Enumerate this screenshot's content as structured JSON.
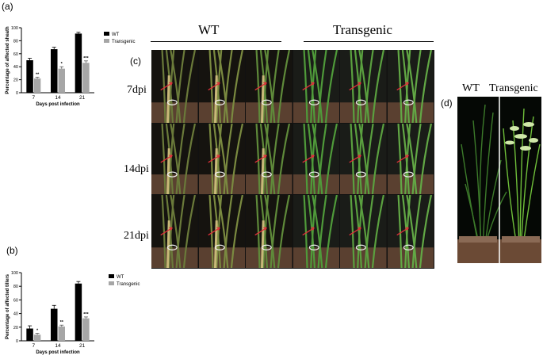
{
  "panels": {
    "a": "(a)",
    "b": "(b)",
    "c": "(c)",
    "d": "(d)"
  },
  "chart_data": [
    {
      "type": "bar",
      "panel": "(a)",
      "ylabel": "Percentage of affected sheath",
      "xlabel": "Days post infection",
      "categories": [
        "7",
        "14",
        "21"
      ],
      "ylim": [
        0,
        100
      ],
      "yticks": [
        "0",
        "20",
        "40",
        "60",
        "80",
        "100"
      ],
      "series": [
        {
          "name": "WT",
          "values": [
            50,
            67,
            91
          ],
          "errors": [
            3,
            3,
            2
          ],
          "color": "#000000"
        },
        {
          "name": "Transgenic",
          "values": [
            22,
            37,
            46
          ],
          "errors": [
            2,
            3,
            3
          ],
          "color": "#a6a6a6"
        }
      ],
      "significance": [
        "**",
        "*",
        "***"
      ],
      "legend": "top-right"
    },
    {
      "type": "bar",
      "panel": "(b)",
      "ylabel": "Percentage of affected tillers",
      "xlabel": "Days post infection",
      "categories": [
        "7",
        "14",
        "21"
      ],
      "ylim": [
        0,
        100
      ],
      "yticks": [
        "0",
        "20",
        "40",
        "60",
        "80",
        "100"
      ],
      "series": [
        {
          "name": "WT",
          "values": [
            18,
            47,
            84
          ],
          "errors": [
            4,
            5,
            3
          ],
          "color": "#000000"
        },
        {
          "name": "Transgenic",
          "values": [
            9,
            21,
            33
          ],
          "errors": [
            2,
            2,
            2
          ],
          "color": "#a6a6a6"
        }
      ],
      "significance": [
        "*",
        "**",
        "***"
      ],
      "legend": "top-right"
    }
  ],
  "figure_c": {
    "groups": [
      "WT",
      "Transgenic"
    ],
    "rows": [
      "7dpi",
      "14dpi",
      "21dpi"
    ]
  },
  "figure_d": {
    "labels": [
      "WT",
      "Transgenic"
    ]
  }
}
